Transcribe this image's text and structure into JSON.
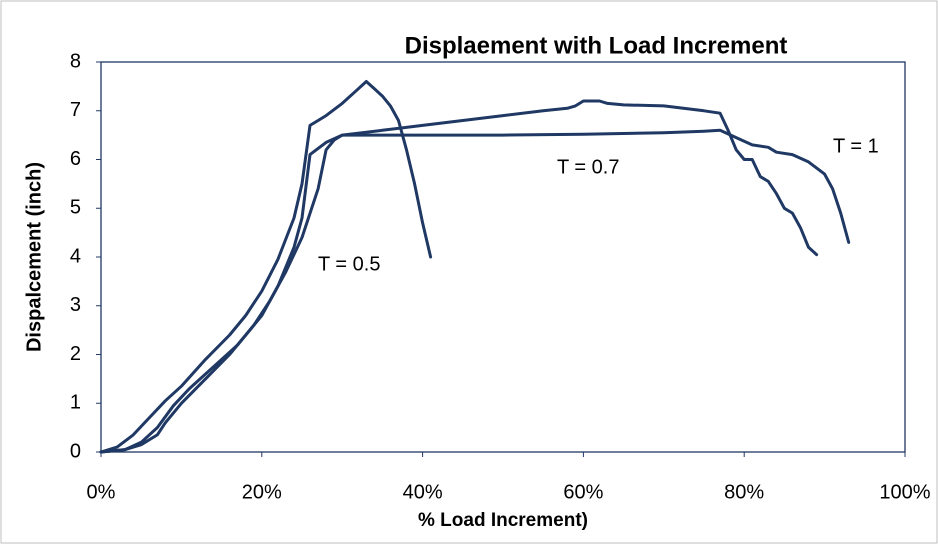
{
  "chart_data": {
    "type": "line",
    "title": "Displaement with  Load Increment",
    "xlabel": "% Load Increment)",
    "ylabel": "Dispalcement (inch)",
    "xlim": [
      0,
      100
    ],
    "xticks": [
      {
        "value": 0,
        "label": "0%"
      },
      {
        "value": 20,
        "label": "20%"
      },
      {
        "value": 40,
        "label": "40%"
      },
      {
        "value": 60,
        "label": "60%"
      },
      {
        "value": 80,
        "label": "80%"
      },
      {
        "value": 100,
        "label": "100%"
      }
    ],
    "ylim": [
      0,
      8
    ],
    "yticks": [
      0,
      1,
      2,
      3,
      4,
      5,
      6,
      7,
      8
    ],
    "grid": false,
    "series": [
      {
        "name": "T = 0.5",
        "color": "#1f3864",
        "x": [
          0,
          2,
          4,
          6,
          8,
          10,
          13,
          16,
          18,
          20,
          22,
          24,
          25,
          26,
          27,
          28,
          30,
          32,
          33,
          34,
          35,
          36,
          37,
          38,
          39,
          40,
          41
        ],
        "values": [
          0,
          0.1,
          0.35,
          0.7,
          1.05,
          1.35,
          1.9,
          2.4,
          2.8,
          3.3,
          3.95,
          4.8,
          5.5,
          6.7,
          6.8,
          6.9,
          7.15,
          7.45,
          7.6,
          7.45,
          7.3,
          7.1,
          6.8,
          6.2,
          5.5,
          4.7,
          4.0
        ]
      },
      {
        "name": "T = 0.7",
        "color": "#1f3864",
        "x": [
          0,
          3,
          5,
          7,
          9,
          11,
          14,
          17,
          20,
          22,
          24,
          25,
          26,
          28,
          30,
          35,
          40,
          45,
          50,
          55,
          58,
          59,
          60,
          62,
          63,
          65,
          70,
          75,
          77,
          78,
          79,
          80,
          81,
          82,
          83,
          84,
          85,
          86,
          87,
          88,
          89
        ],
        "values": [
          0,
          0.05,
          0.2,
          0.5,
          0.95,
          1.3,
          1.75,
          2.2,
          2.8,
          3.4,
          4.2,
          4.8,
          6.1,
          6.35,
          6.5,
          6.6,
          6.7,
          6.8,
          6.9,
          7.0,
          7.05,
          7.1,
          7.2,
          7.2,
          7.15,
          7.12,
          7.1,
          7.0,
          6.95,
          6.6,
          6.2,
          6.0,
          6.0,
          5.65,
          5.55,
          5.3,
          5.0,
          4.9,
          4.6,
          4.2,
          4.05
        ]
      },
      {
        "name": "T = 1",
        "color": "#1f3864",
        "x": [
          0,
          3,
          5,
          7,
          8,
          10,
          13,
          16,
          19,
          21,
          23,
          25,
          27,
          28,
          29,
          30,
          40,
          50,
          60,
          70,
          75,
          77,
          79,
          81,
          83,
          84,
          86,
          88,
          90,
          91,
          92,
          93
        ],
        "values": [
          0,
          0.05,
          0.15,
          0.35,
          0.6,
          1.0,
          1.5,
          2.0,
          2.6,
          3.1,
          3.7,
          4.4,
          5.4,
          6.2,
          6.4,
          6.5,
          6.5,
          6.5,
          6.52,
          6.55,
          6.58,
          6.6,
          6.45,
          6.3,
          6.25,
          6.15,
          6.1,
          5.95,
          5.7,
          5.4,
          4.9,
          4.3
        ]
      }
    ]
  }
}
